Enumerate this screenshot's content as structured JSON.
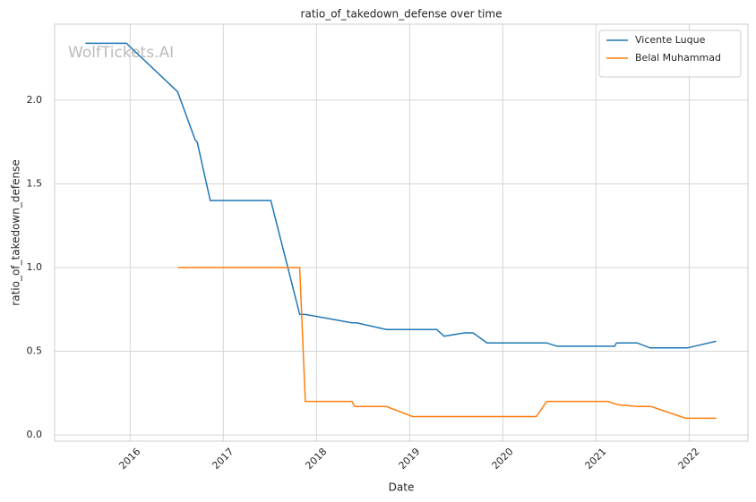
{
  "chart_data": {
    "type": "line",
    "title": "ratio_of_takedown_defense over time",
    "x_label": "Date",
    "y_label": "ratio_of_takedown_defense",
    "watermark": "WolfTickets.AI",
    "legend": "upper right",
    "grid": true,
    "xlim": [
      2015.19,
      2022.63
    ],
    "xticks": [
      2016,
      2017,
      2018,
      2019,
      2020,
      2021,
      2022
    ],
    "ylim": [
      -0.037,
      2.454
    ],
    "yticks": [
      {
        "value": 0,
        "label": "0.0"
      },
      0.5,
      {
        "value": 1,
        "label": "1.0"
      },
      1.5,
      {
        "value": 2,
        "label": "2.0"
      }
    ],
    "series": [
      {
        "name": "Vicente Luque",
        "color": "#1f77b4",
        "x": [
          2015.52,
          2015.96,
          2016.51,
          2016.7,
          2016.72,
          2016.86,
          2017.51,
          2017.82,
          2017.88,
          2018.38,
          2018.43,
          2018.75,
          2019.29,
          2019.37,
          2019.59,
          2019.68,
          2019.83,
          2020.47,
          2020.58,
          2021.2,
          2021.22,
          2021.44,
          2021.58,
          2021.98,
          2022.29
        ],
        "values": [
          2.34,
          2.34,
          2.05,
          1.76,
          1.75,
          1.4,
          1.4,
          0.72,
          0.72,
          0.67,
          0.67,
          0.63,
          0.63,
          0.59,
          0.61,
          0.61,
          0.55,
          0.55,
          0.53,
          0.53,
          0.55,
          0.55,
          0.52,
          0.52,
          0.56
        ]
      },
      {
        "name": "Belal Muhammad",
        "color": "#ff7f0e",
        "x": [
          2016.51,
          2017.82,
          2017.88,
          2018.38,
          2018.41,
          2018.75,
          2019.03,
          2020.36,
          2020.47,
          2021.13,
          2021.18,
          2021.24,
          2021.44,
          2021.59,
          2021.96,
          2022.29
        ],
        "values": [
          1.0,
          1.0,
          0.2,
          0.2,
          0.17,
          0.17,
          0.11,
          0.11,
          0.2,
          0.2,
          0.19,
          0.18,
          0.17,
          0.17,
          0.1,
          0.1
        ]
      }
    ]
  }
}
